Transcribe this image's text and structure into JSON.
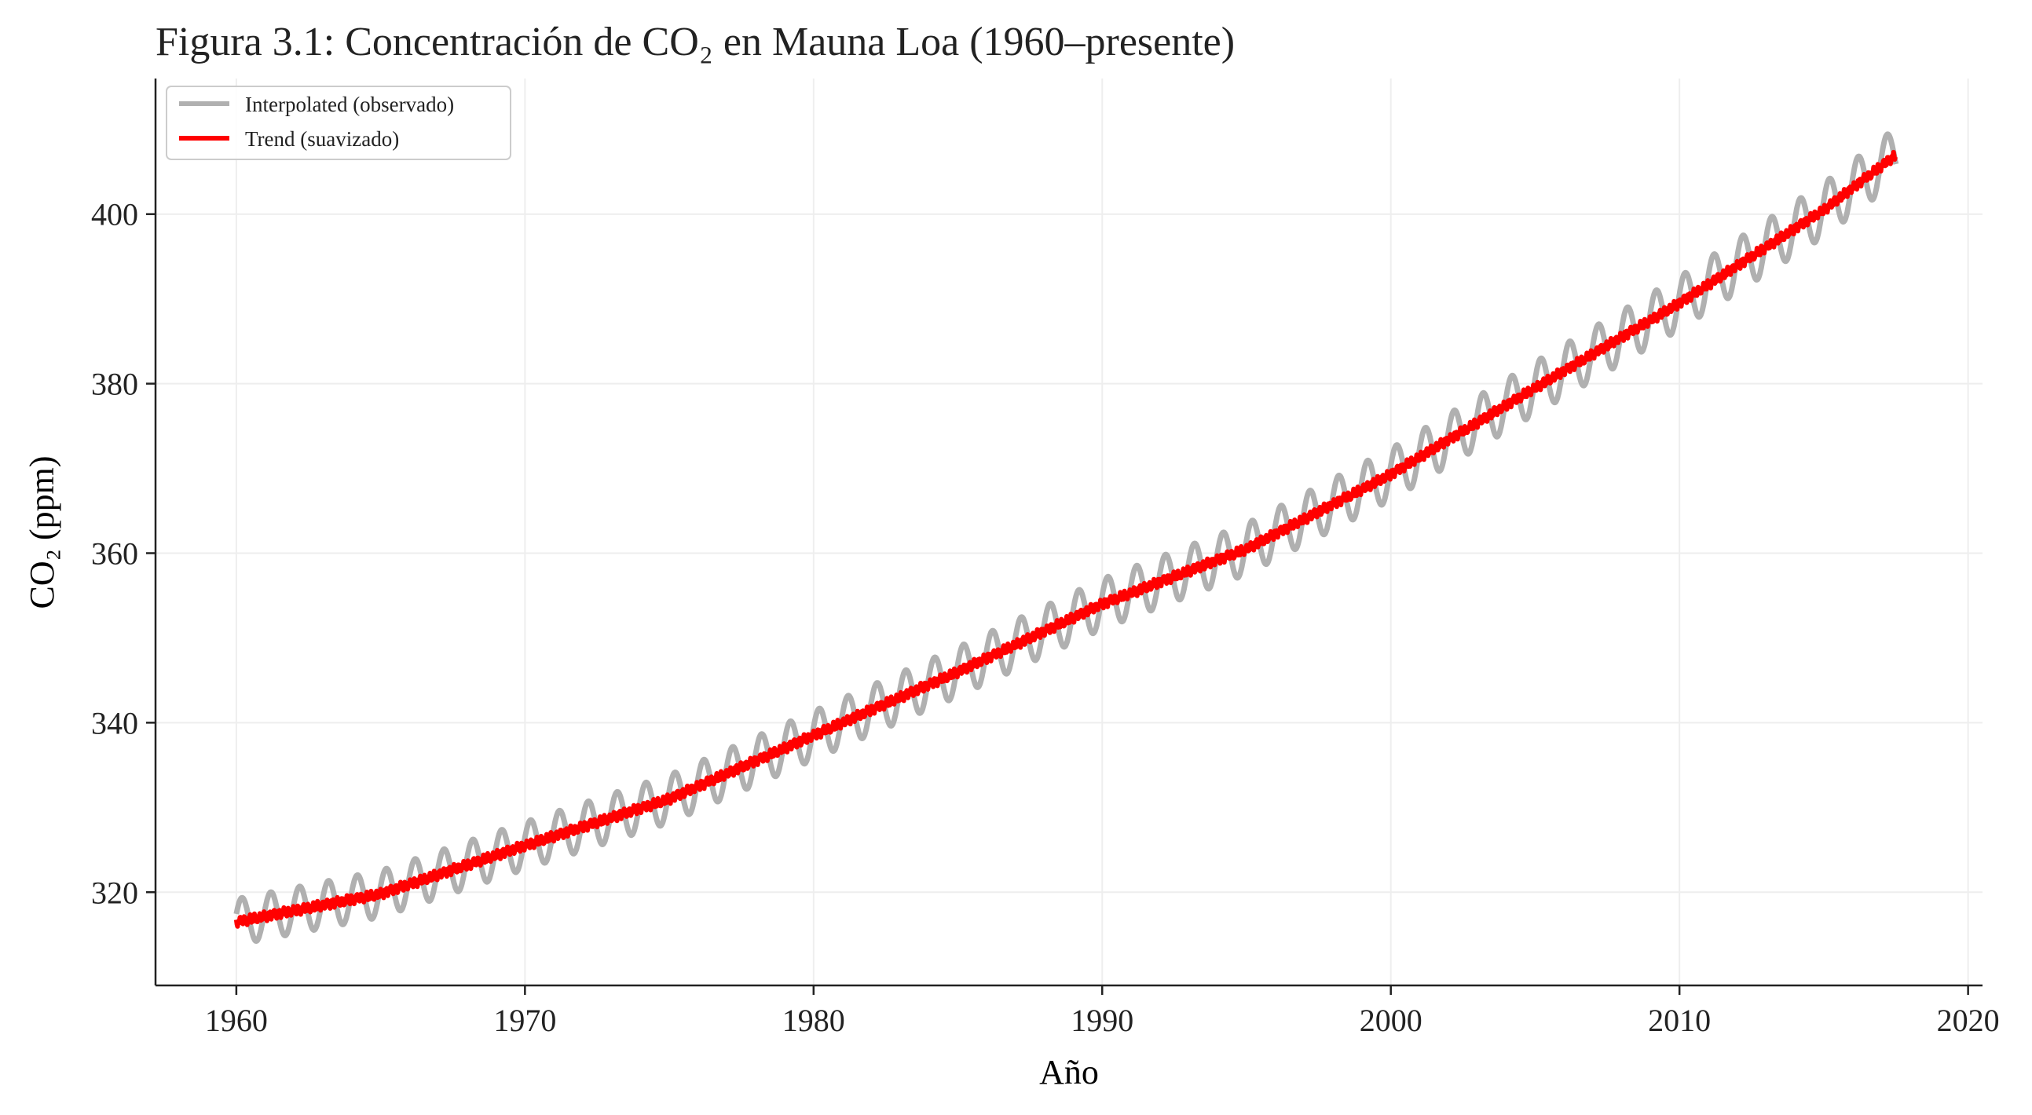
{
  "chart_data": {
    "type": "line",
    "title": "Figura 3.1: Concentración de CO₂ en Mauna Loa (1960–presente)",
    "xlabel": "Año",
    "ylabel": "CO₂ (ppm)",
    "xlim": [
      1957.2,
      2020.5
    ],
    "ylim": [
      309,
      416
    ],
    "x_ticks": [
      1960,
      1970,
      1980,
      1990,
      2000,
      2010,
      2020
    ],
    "y_ticks": [
      320,
      340,
      360,
      380,
      400
    ],
    "grid": true,
    "legend_position": "top-left",
    "colors": {
      "observed": "#b0b0b0",
      "trend": "#ff0000",
      "axes": "#222222",
      "grid": "#eeeeee"
    },
    "trend_anchor_x": [
      1960,
      1965,
      1970,
      1975,
      1980,
      1985,
      1990,
      1995,
      2000,
      2005,
      2010,
      2015,
      2017.5
    ],
    "trend_anchor_y": [
      316.5,
      319.8,
      325.5,
      331.0,
      338.5,
      346.0,
      354.0,
      360.5,
      369.3,
      379.5,
      389.5,
      400.5,
      407.0
    ],
    "seasonal_amplitude": 3.2,
    "series": [
      {
        "name": "Interpolated (observado)"
      },
      {
        "name": "Trend (suavizado)"
      }
    ]
  }
}
